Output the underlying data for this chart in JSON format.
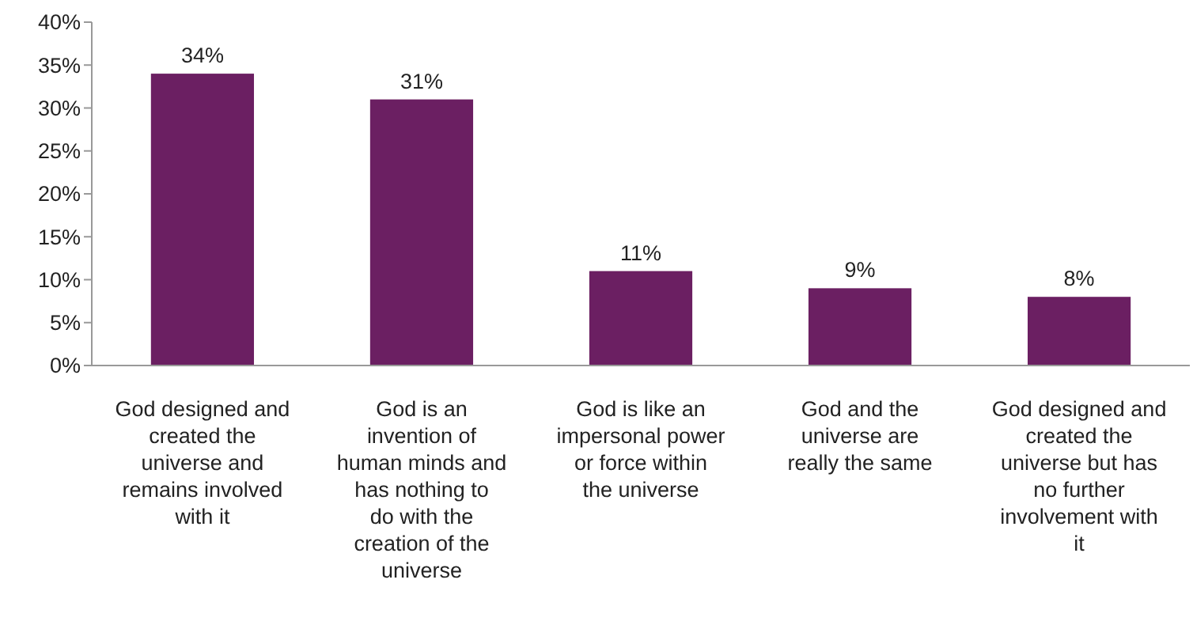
{
  "chart_data": {
    "type": "bar",
    "categories": [
      "God designed and created the universe and remains involved with it",
      "God is an invention of human minds and has nothing to do with the creation of the universe",
      "God is like an impersonal power or force within the universe",
      "God and the universe are really the same",
      "God designed and created the universe but has no further involvement with it"
    ],
    "values": [
      34,
      31,
      11,
      9,
      8
    ],
    "value_labels": [
      "34%",
      "31%",
      "11%",
      "9%",
      "8%"
    ],
    "color": "#6b1f62",
    "ylim": [
      0,
      40
    ],
    "yticks": [
      {
        "value": 0,
        "label": "0%"
      },
      {
        "value": 5,
        "label": "5%"
      },
      {
        "value": 10,
        "label": "10%"
      },
      {
        "value": 15,
        "label": "15%"
      },
      {
        "value": 20,
        "label": "20%"
      },
      {
        "value": 25,
        "label": "25%"
      },
      {
        "value": 30,
        "label": "30%"
      },
      {
        "value": 35,
        "label": "35%"
      },
      {
        "value": 40,
        "label": "40%"
      }
    ],
    "grid": false
  }
}
